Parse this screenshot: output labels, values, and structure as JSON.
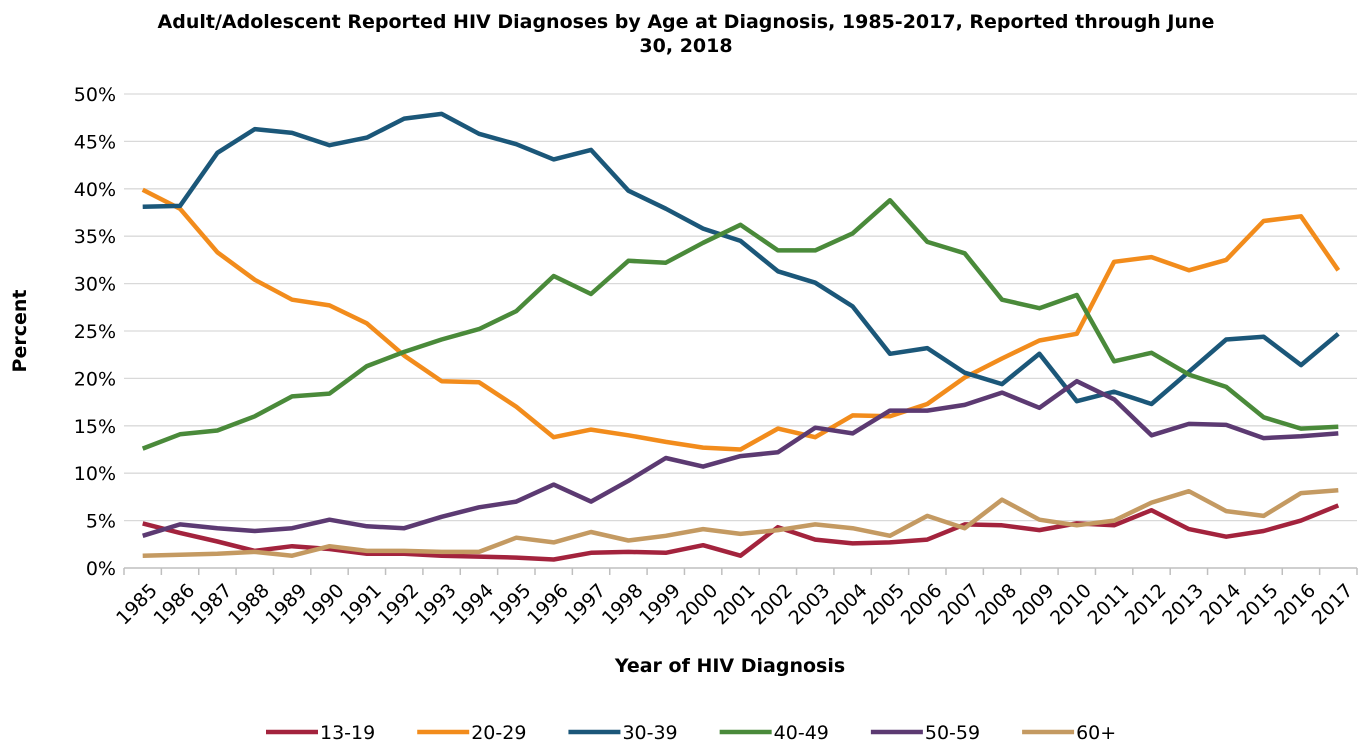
{
  "chart_data": {
    "type": "line",
    "title": "Adult/Adolescent Reported HIV Diagnoses by Age at Diagnosis, 1985-2017, Reported through June 30, 2018",
    "xlabel": "Year of HIV Diagnosis",
    "ylabel": "Percent",
    "categories": [
      "1985",
      "1986",
      "1987",
      "1988",
      "1989",
      "1990",
      "1991",
      "1992",
      "1993",
      "1994",
      "1995",
      "1996",
      "1997",
      "1998",
      "1999",
      "2000",
      "2001",
      "2002",
      "2003",
      "2004",
      "2005",
      "2006",
      "2007",
      "2008",
      "2009",
      "2010",
      "2011",
      "2012",
      "2013",
      "2014",
      "2015",
      "2016",
      "2017"
    ],
    "series": [
      {
        "name": "13-19",
        "color": "#a3233d",
        "values": [
          4.7,
          3.7,
          2.8,
          1.8,
          2.3,
          2.0,
          1.5,
          1.5,
          1.3,
          1.2,
          1.1,
          0.9,
          1.6,
          1.7,
          1.6,
          2.4,
          1.3,
          4.3,
          3.0,
          2.6,
          2.7,
          3.0,
          4.6,
          4.5,
          4.0,
          4.7,
          4.5,
          6.1,
          4.1,
          3.3,
          3.9,
          5.0,
          6.6
        ]
      },
      {
        "name": "20-29",
        "color": "#f28c1c",
        "values": [
          39.9,
          37.9,
          33.3,
          30.4,
          28.3,
          27.7,
          25.8,
          22.4,
          19.7,
          19.6,
          17.0,
          13.8,
          14.6,
          14.0,
          13.3,
          12.7,
          12.5,
          14.7,
          13.8,
          16.1,
          16.0,
          17.3,
          20.1,
          22.1,
          24.0,
          24.7,
          32.3,
          32.8,
          31.4,
          32.5,
          36.6,
          37.1,
          31.4
        ]
      },
      {
        "name": "30-39",
        "color": "#1b5779",
        "values": [
          38.1,
          38.2,
          43.8,
          46.3,
          45.9,
          44.6,
          45.4,
          47.4,
          47.9,
          45.8,
          44.7,
          43.1,
          44.1,
          39.8,
          37.9,
          35.8,
          34.5,
          31.3,
          30.1,
          27.6,
          22.6,
          23.2,
          20.6,
          19.4,
          22.6,
          17.6,
          18.6,
          17.3,
          20.7,
          24.1,
          24.4,
          21.4,
          24.7
        ]
      },
      {
        "name": "40-49",
        "color": "#4a8a3a",
        "values": [
          12.6,
          14.1,
          14.5,
          16.0,
          18.1,
          18.4,
          21.3,
          22.8,
          24.1,
          25.2,
          27.1,
          30.8,
          28.9,
          32.4,
          32.2,
          34.3,
          36.2,
          33.5,
          33.5,
          35.3,
          38.8,
          34.4,
          33.2,
          28.3,
          27.4,
          28.8,
          21.8,
          22.7,
          20.4,
          19.1,
          15.9,
          14.7,
          14.9
        ]
      },
      {
        "name": "50-59",
        "color": "#5c3a72",
        "values": [
          3.4,
          4.6,
          4.2,
          3.9,
          4.2,
          5.1,
          4.4,
          4.2,
          5.4,
          6.4,
          7.0,
          8.8,
          7.0,
          9.2,
          11.6,
          10.7,
          11.8,
          12.2,
          14.8,
          14.2,
          16.6,
          16.6,
          17.2,
          18.5,
          16.9,
          19.7,
          17.8,
          14.0,
          15.2,
          15.1,
          13.7,
          13.9,
          14.2
        ]
      },
      {
        "name": "60+",
        "color": "#c49a62",
        "values": [
          1.3,
          1.4,
          1.5,
          1.7,
          1.3,
          2.3,
          1.8,
          1.8,
          1.7,
          1.7,
          3.2,
          2.7,
          3.8,
          2.9,
          3.4,
          4.1,
          3.6,
          4.0,
          4.6,
          4.2,
          3.4,
          5.5,
          4.2,
          7.2,
          5.1,
          4.5,
          5.0,
          6.9,
          8.1,
          6.0,
          5.5,
          7.9,
          8.2
        ]
      }
    ],
    "ylim": [
      0,
      50
    ],
    "yticks": [
      {
        "value": 0,
        "label": "0%"
      },
      {
        "value": 5,
        "label": "5%"
      },
      {
        "value": 10,
        "label": "10%"
      },
      {
        "value": 15,
        "label": "15%"
      },
      {
        "value": 20,
        "label": "20%"
      },
      {
        "value": 25,
        "label": "25%"
      },
      {
        "value": 30,
        "label": "30%"
      },
      {
        "value": 35,
        "label": "35%"
      },
      {
        "value": 40,
        "label": "40%"
      },
      {
        "value": 45,
        "label": "45%"
      },
      {
        "value": 50,
        "label": "50%"
      }
    ],
    "grid": true,
    "legend": "bottom"
  }
}
